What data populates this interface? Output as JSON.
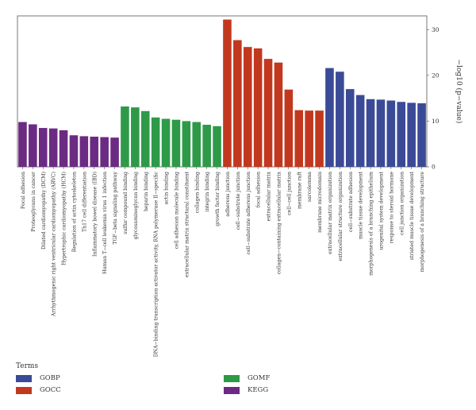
{
  "chart_data": {
    "type": "bar",
    "ylabel": "−log10 (p−value)",
    "ylim": [
      0,
      33
    ],
    "yticks": [
      "0",
      "10",
      "20",
      "30"
    ],
    "grid": false,
    "legend_position": "bottom",
    "legend_title": "Terms",
    "colors": {
      "GOBP": "#3b4a97",
      "GOCC": "#c2381f",
      "GOMF": "#2e9a48",
      "KEGG": "#6b2b83"
    },
    "series": [
      {
        "name": "GOBP",
        "color": "#3b4a97"
      },
      {
        "name": "GOCC",
        "color": "#c2381f"
      },
      {
        "name": "GOMF",
        "color": "#2e9a48"
      },
      {
        "name": "KEGG",
        "color": "#6b2b83"
      }
    ],
    "categories": [
      "Focal adhesion",
      "Proteoglycans in cancer",
      "Dilated cardiomyopathy (DCM)",
      "Arrhythmogenic right ventricular cardiomyopathy (ARVC)",
      "Hypertrophic cardiomyopathy (HCM)",
      "Regulation of actin cytoskeleton",
      "Th17 cell differentiation",
      "Inflammatory bowel disease (IBD)",
      "Human T−cell leukemia virus 1 infection",
      "TGF−beta signaling pathway",
      "sulfur compound binding",
      "glycosaminoglycan binding",
      "heparin binding",
      "DNA−binding transcription activator activity, RNA polymerase II−specific",
      "actin binding",
      "cell adhesion molecule binding",
      "extracellular matrix structural constituent",
      "collagen binding",
      "integrin binding",
      "growth factor binding",
      "adherens junction",
      "cell−substrate junction",
      "cell−substrate adherens junction",
      "focal adhesion",
      "extracellular matrix",
      "collagen−containing extracellular matrix",
      "cell−cell junction",
      "membrane raft",
      "sarcolemma",
      "membrane microdomain",
      "extracellular matrix organization",
      "extracellular structure organization",
      "cell−substrate adhesion",
      "muscle tissue development",
      "morphogenesis of a branching epithelium",
      "urogenital system development",
      "response to steroid hormone",
      "cell junction organization",
      "striated muscle tissue development",
      "morphogenesis of a branching structure"
    ],
    "groups": [
      "KEGG",
      "KEGG",
      "KEGG",
      "KEGG",
      "KEGG",
      "KEGG",
      "KEGG",
      "KEGG",
      "KEGG",
      "KEGG",
      "GOMF",
      "GOMF",
      "GOMF",
      "GOMF",
      "GOMF",
      "GOMF",
      "GOMF",
      "GOMF",
      "GOMF",
      "GOMF",
      "GOCC",
      "GOCC",
      "GOCC",
      "GOCC",
      "GOCC",
      "GOCC",
      "GOCC",
      "GOCC",
      "GOCC",
      "GOCC",
      "GOBP",
      "GOBP",
      "GOBP",
      "GOBP",
      "GOBP",
      "GOBP",
      "GOBP",
      "GOBP",
      "GOBP",
      "GOBP"
    ],
    "values": [
      9.8,
      9.3,
      8.5,
      8.4,
      8.0,
      6.9,
      6.7,
      6.6,
      6.5,
      6.4,
      13.2,
      13.0,
      12.2,
      10.8,
      10.5,
      10.3,
      10.0,
      9.8,
      9.2,
      8.9,
      32.2,
      27.7,
      26.2,
      25.9,
      23.6,
      22.8,
      16.9,
      12.4,
      12.3,
      12.3,
      21.6,
      20.8,
      17.0,
      15.7,
      14.8,
      14.7,
      14.5,
      14.2,
      14.0,
      13.9
    ]
  }
}
